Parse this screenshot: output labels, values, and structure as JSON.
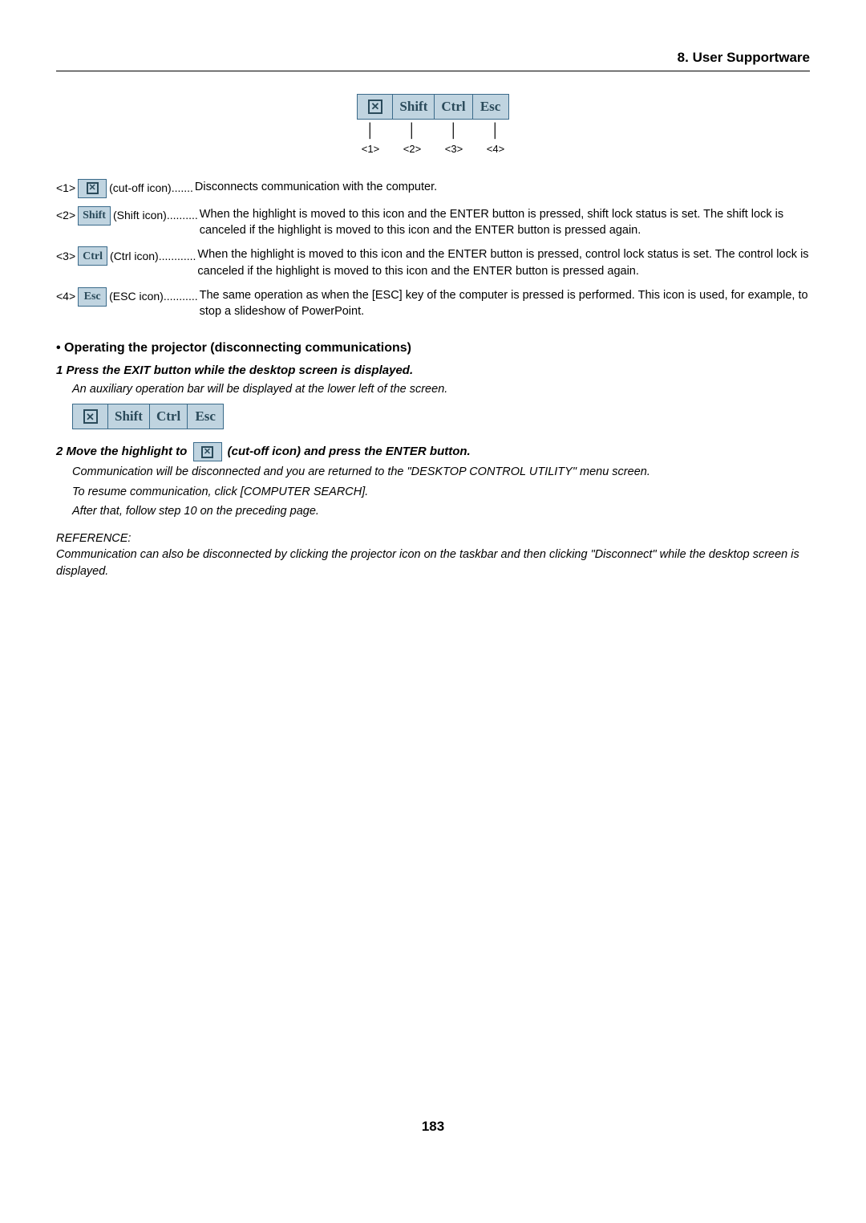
{
  "header": {
    "section": "8. User Supportware"
  },
  "toolbar": {
    "buttons": {
      "b1": "✕",
      "b2": "Shift",
      "b3": "Ctrl",
      "b4": "Esc"
    },
    "nums": {
      "n1": "<1>",
      "n2": "<2>",
      "n3": "<3>",
      "n4": "<4>"
    }
  },
  "defs": {
    "d1": {
      "num": "<1>",
      "label": " (cut-off icon)",
      "dots": ".......",
      "desc": "Disconnects communication with the computer."
    },
    "d2": {
      "num": "<2>",
      "label": " (Shift icon)",
      "dots": "..........",
      "desc": "When the highlight is moved to this icon and the ENTER button is pressed, shift lock status is set. The shift lock is canceled if the highlight is moved to this icon and the ENTER button is pressed again."
    },
    "d3": {
      "num": "<3>",
      "label": " (Ctrl icon)",
      "dots": "............",
      "desc": "When the highlight is moved to this icon and the ENTER button is pressed, control lock status is set. The control lock is canceled if the highlight is moved to this icon and the ENTER button is pressed again."
    },
    "d4": {
      "num": "<4>",
      "label": " (ESC icon)",
      "dots": "...........",
      "desc": "The same operation as when the [ESC] key of the computer is pressed is performed. This icon is used, for example, to stop a slideshow of PowerPoint."
    }
  },
  "section2": {
    "heading": "• Operating the projector (disconnecting communications)",
    "step1": {
      "title": "1  Press the EXIT button while the desktop screen is displayed.",
      "desc": "An auxiliary operation bar will be displayed at the lower left of the screen."
    },
    "step2": {
      "title_a": "2  Move the highlight to ",
      "title_b": " (cut-off icon) and press the ENTER button.",
      "desc1": "Communication will be disconnected and you are returned to the \"DESKTOP CONTROL UTILITY\" menu screen.",
      "desc2": "To resume communication, click [COMPUTER SEARCH].",
      "desc3": "After that, follow step 10 on the preceding page."
    }
  },
  "reference": {
    "title": "REFERENCE:",
    "body": "Communication can also be disconnected by clicking the projector icon on the taskbar and then clicking \"Disconnect\" while the desktop screen is displayed."
  },
  "pageNumber": "183",
  "icons": {
    "xglyph": "✕",
    "shift": "Shift",
    "ctrl": "Ctrl",
    "esc": "Esc"
  }
}
